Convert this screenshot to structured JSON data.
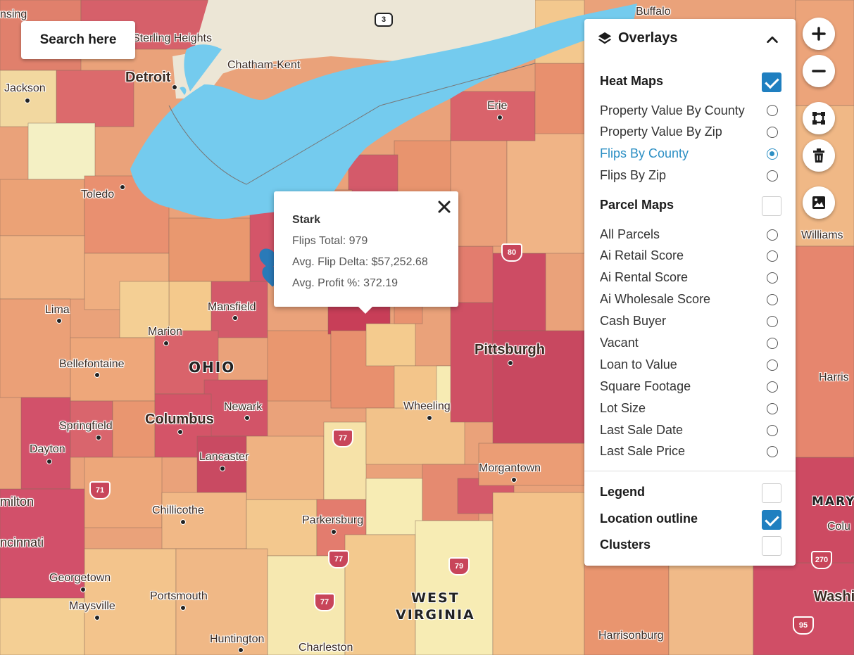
{
  "search": {
    "label": "Search here"
  },
  "map": {
    "cities": [
      {
        "name": "Detroit",
        "big": true
      },
      {
        "name": "Sterling Heights"
      },
      {
        "name": "Chatham-Kent"
      },
      {
        "name": "Buffalo"
      },
      {
        "name": "Jackson"
      },
      {
        "name": "Toledo"
      },
      {
        "name": "Erie"
      },
      {
        "name": "Lima"
      },
      {
        "name": "Mansfield"
      },
      {
        "name": "Marion"
      },
      {
        "name": "Bellefontaine"
      },
      {
        "name": "Columbus",
        "big": true
      },
      {
        "name": "Newark"
      },
      {
        "name": "Springfield"
      },
      {
        "name": "Dayton"
      },
      {
        "name": "Lancaster"
      },
      {
        "name": "Pittsburgh",
        "big": true
      },
      {
        "name": "Wheeling"
      },
      {
        "name": "Morgantown"
      },
      {
        "name": "Chillicothe"
      },
      {
        "name": "Parkersburg"
      },
      {
        "name": "Georgetown"
      },
      {
        "name": "Portsmouth"
      },
      {
        "name": "Maysville"
      },
      {
        "name": "Huntington"
      },
      {
        "name": "Charleston"
      },
      {
        "name": "Harrisonburg"
      },
      {
        "name": "Williams"
      },
      {
        "name": "Harris"
      },
      {
        "name": "Colu"
      },
      {
        "name": "Washi"
      },
      {
        "name": "milton"
      },
      {
        "name": "ncinnati"
      },
      {
        "name": "nsing"
      }
    ],
    "regions": {
      "ohio": "OHIO",
      "wv_line1": "WEST",
      "wv_line2": "VIRGINIA",
      "mary": "MARY"
    },
    "shields": [
      "3",
      "80",
      "77",
      "77",
      "79",
      "77",
      "71",
      "270",
      "95"
    ]
  },
  "popup": {
    "title": "Stark",
    "lines": [
      "Flips Total: 979",
      "Avg. Flip Delta: $57,252.68",
      "Avg. Profit %: 372.19"
    ]
  },
  "overlays": {
    "title": "Overlays",
    "heat_maps": {
      "label": "Heat Maps",
      "checked": true,
      "options": [
        {
          "label": "Property Value By County",
          "selected": false
        },
        {
          "label": "Property Value By Zip",
          "selected": false
        },
        {
          "label": "Flips By County",
          "selected": true
        },
        {
          "label": "Flips By Zip",
          "selected": false
        }
      ]
    },
    "parcel_maps": {
      "label": "Parcel Maps",
      "checked": false,
      "options": [
        {
          "label": "All Parcels"
        },
        {
          "label": "Ai Retail Score"
        },
        {
          "label": "Ai Rental Score"
        },
        {
          "label": "Ai Wholesale Score"
        },
        {
          "label": "Cash Buyer"
        },
        {
          "label": "Vacant"
        },
        {
          "label": "Loan to Value"
        },
        {
          "label": "Square Footage"
        },
        {
          "label": "Lot Size"
        },
        {
          "label": "Last Sale Date"
        },
        {
          "label": "Last Sale Price"
        }
      ]
    },
    "legend": {
      "label": "Legend",
      "checked": false
    },
    "location_outline": {
      "label": "Location outline",
      "checked": true
    },
    "clusters": {
      "label": "Clusters",
      "checked": false
    }
  },
  "colors": {
    "water": "#74cbee",
    "land_ca": "#ece6d6",
    "accent": "#2c8fc4",
    "checkbox": "#1f7fc0"
  },
  "controls": [
    "zoom-in-icon",
    "zoom-out-icon",
    "draw-shape-icon",
    "trash-icon",
    "image-icon"
  ]
}
